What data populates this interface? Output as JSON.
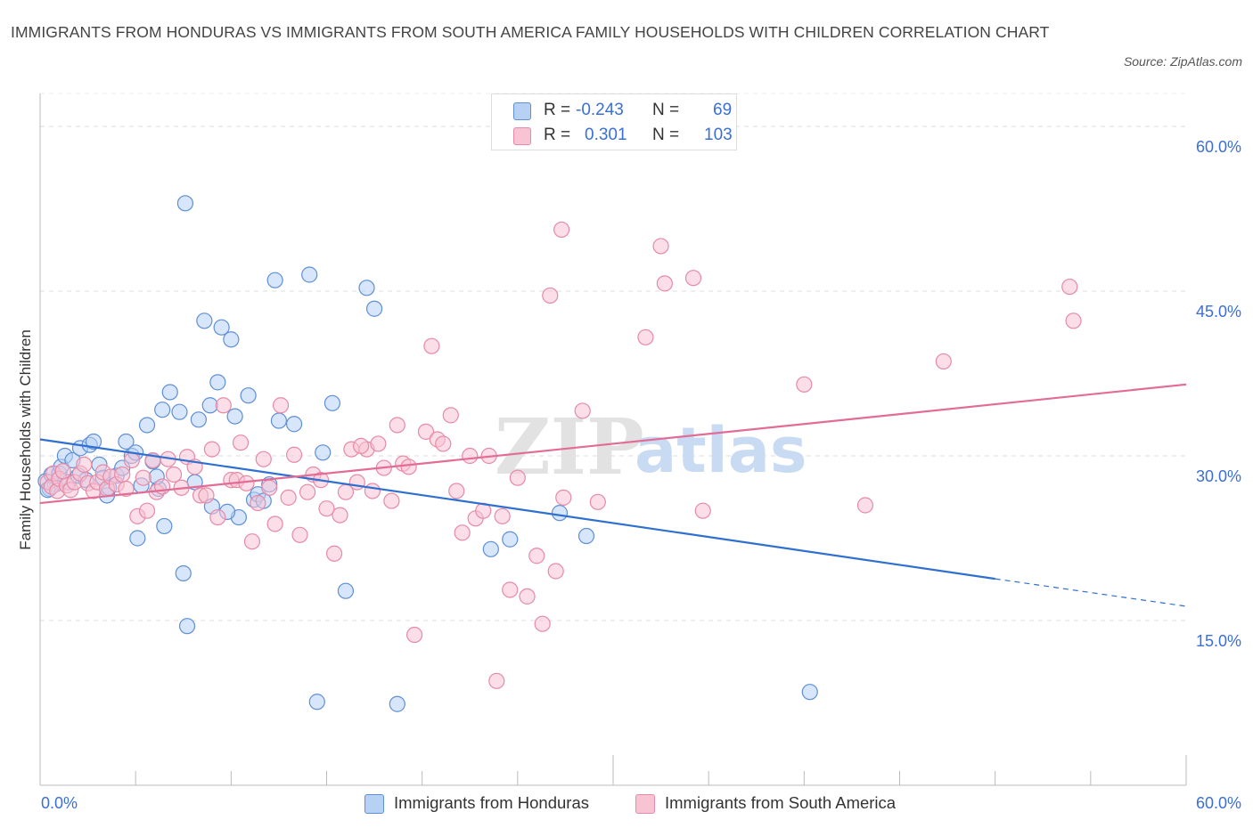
{
  "title": "IMMIGRANTS FROM HONDURAS VS IMMIGRANTS FROM SOUTH AMERICA FAMILY HOUSEHOLDS WITH CHILDREN CORRELATION CHART",
  "source": "Source: ZipAtlas.com",
  "watermark": {
    "zip": "ZIP",
    "atlas": "atlas"
  },
  "colors": {
    "blue_fill": "#b7d1f5",
    "blue_stroke": "#5f8fd6",
    "blue_line": "#2f6fd0",
    "pink_fill": "#f8c3d3",
    "pink_stroke": "#e68aa7",
    "pink_line": "#e26c96",
    "axis_text": "#3a6fd8",
    "grid": "#dddddd"
  },
  "legend": {
    "rows": [
      {
        "r_label": "R =",
        "r_value": "-0.243",
        "n_label": "N =",
        "n_value": "69"
      },
      {
        "r_label": "R =",
        "r_value": "0.301",
        "n_label": "N =",
        "n_value": "103"
      }
    ]
  },
  "chart_data": {
    "type": "scatter",
    "title": "IMMIGRANTS FROM HONDURAS VS IMMIGRANTS FROM SOUTH AMERICA FAMILY HOUSEHOLDS WITH CHILDREN CORRELATION CHART",
    "xlabel": "",
    "ylabel": "Family Households with Children",
    "xlim": [
      0,
      60
    ],
    "ylim": [
      0,
      63
    ],
    "x_tick_labels": [
      {
        "value": 0,
        "label": "0.0%"
      },
      {
        "value": 60,
        "label": "60.0%"
      }
    ],
    "y_tick_labels": [
      {
        "value": 60,
        "label": "60.0%"
      },
      {
        "value": 45,
        "label": "45.0%"
      },
      {
        "value": 30,
        "label": "30.0%"
      },
      {
        "value": 15,
        "label": "15.0%"
      }
    ],
    "y_gridlines": [
      15,
      30,
      45,
      60
    ],
    "legend_position": "bottom",
    "series": [
      {
        "name": "Immigrants from Honduras",
        "color": "blue",
        "r": -0.243,
        "n": 69,
        "trend": {
          "x0": 0,
          "y0": 31.5,
          "x1": 50,
          "y1": 18.8,
          "dash_to_x": 60,
          "dash_to_y": 16.3
        },
        "points": [
          [
            0.3,
            27.7
          ],
          [
            0.5,
            27.0
          ],
          [
            0.6,
            28.3
          ],
          [
            0.8,
            27.4
          ],
          [
            1.0,
            28.4
          ],
          [
            1.1,
            29.0
          ],
          [
            1.3,
            30.0
          ],
          [
            1.5,
            27.6
          ],
          [
            1.7,
            29.6
          ],
          [
            2.0,
            28.2
          ],
          [
            2.1,
            30.7
          ],
          [
            2.4,
            27.8
          ],
          [
            2.6,
            31.0
          ],
          [
            2.8,
            31.3
          ],
          [
            3.1,
            29.2
          ],
          [
            3.3,
            28.0
          ],
          [
            3.5,
            26.4
          ],
          [
            3.6,
            27.1
          ],
          [
            4.0,
            28.2
          ],
          [
            4.3,
            28.9
          ],
          [
            4.5,
            31.3
          ],
          [
            4.8,
            30.0
          ],
          [
            5.0,
            30.3
          ],
          [
            5.1,
            22.5
          ],
          [
            5.3,
            27.3
          ],
          [
            5.6,
            32.8
          ],
          [
            5.9,
            29.5
          ],
          [
            6.2,
            27.0
          ],
          [
            6.4,
            34.2
          ],
          [
            6.5,
            23.6
          ],
          [
            6.8,
            35.8
          ],
          [
            7.3,
            34.0
          ],
          [
            7.5,
            19.3
          ],
          [
            7.6,
            53.0
          ],
          [
            7.7,
            14.5
          ],
          [
            8.1,
            27.6
          ],
          [
            8.3,
            33.3
          ],
          [
            8.6,
            42.3
          ],
          [
            8.9,
            34.6
          ],
          [
            9.0,
            25.4
          ],
          [
            9.3,
            36.7
          ],
          [
            9.5,
            41.7
          ],
          [
            10.0,
            40.6
          ],
          [
            10.2,
            33.6
          ],
          [
            10.4,
            24.4
          ],
          [
            10.9,
            35.5
          ],
          [
            11.2,
            26.0
          ],
          [
            11.4,
            26.5
          ],
          [
            11.7,
            25.9
          ],
          [
            12.0,
            27.4
          ],
          [
            12.3,
            46.0
          ],
          [
            12.5,
            33.2
          ],
          [
            13.3,
            32.9
          ],
          [
            14.1,
            46.5
          ],
          [
            14.5,
            7.6
          ],
          [
            14.8,
            30.3
          ],
          [
            15.3,
            34.8
          ],
          [
            16.0,
            17.7
          ],
          [
            17.1,
            45.3
          ],
          [
            17.5,
            43.4
          ],
          [
            18.7,
            7.4
          ],
          [
            23.6,
            21.5
          ],
          [
            24.6,
            22.4
          ],
          [
            27.2,
            24.8
          ],
          [
            28.6,
            22.7
          ],
          [
            40.3,
            8.5
          ],
          [
            0.4,
            26.9
          ],
          [
            9.8,
            24.9
          ],
          [
            6.1,
            28.1
          ]
        ]
      },
      {
        "name": "Immigrants from South America",
        "color": "pink",
        "r": 0.301,
        "n": 103,
        "trend": {
          "x0": 0,
          "y0": 25.7,
          "x1": 60,
          "y1": 36.5
        },
        "points": [
          [
            0.4,
            27.6
          ],
          [
            0.6,
            27.2
          ],
          [
            0.7,
            28.4
          ],
          [
            0.9,
            26.8
          ],
          [
            1.0,
            27.9
          ],
          [
            1.2,
            28.6
          ],
          [
            1.4,
            27.3
          ],
          [
            1.6,
            26.9
          ],
          [
            1.8,
            27.6
          ],
          [
            2.1,
            28.4
          ],
          [
            2.3,
            29.2
          ],
          [
            2.5,
            27.5
          ],
          [
            2.8,
            26.8
          ],
          [
            3.0,
            27.6
          ],
          [
            3.3,
            28.5
          ],
          [
            3.5,
            27.0
          ],
          [
            3.7,
            28.1
          ],
          [
            4.0,
            27.4
          ],
          [
            4.3,
            28.3
          ],
          [
            4.5,
            27.0
          ],
          [
            4.8,
            29.6
          ],
          [
            5.1,
            24.5
          ],
          [
            5.4,
            28.0
          ],
          [
            5.6,
            25.0
          ],
          [
            5.9,
            29.6
          ],
          [
            6.1,
            26.7
          ],
          [
            6.4,
            27.2
          ],
          [
            6.7,
            29.7
          ],
          [
            7.0,
            28.3
          ],
          [
            7.4,
            27.1
          ],
          [
            7.7,
            29.9
          ],
          [
            8.1,
            29.0
          ],
          [
            8.4,
            26.4
          ],
          [
            8.7,
            26.4
          ],
          [
            9.0,
            30.6
          ],
          [
            9.3,
            24.4
          ],
          [
            9.6,
            34.6
          ],
          [
            10.0,
            27.8
          ],
          [
            10.3,
            27.8
          ],
          [
            10.5,
            31.2
          ],
          [
            10.8,
            27.5
          ],
          [
            11.1,
            22.2
          ],
          [
            11.4,
            25.7
          ],
          [
            11.7,
            29.7
          ],
          [
            12.0,
            27.1
          ],
          [
            12.3,
            23.8
          ],
          [
            12.6,
            34.6
          ],
          [
            13.0,
            26.2
          ],
          [
            13.3,
            30.1
          ],
          [
            13.6,
            22.8
          ],
          [
            14.0,
            26.7
          ],
          [
            14.3,
            28.3
          ],
          [
            14.7,
            27.8
          ],
          [
            15.0,
            25.2
          ],
          [
            15.4,
            21.1
          ],
          [
            15.7,
            24.6
          ],
          [
            16.0,
            26.7
          ],
          [
            16.3,
            30.6
          ],
          [
            16.6,
            27.6
          ],
          [
            17.1,
            30.6
          ],
          [
            17.4,
            26.8
          ],
          [
            17.7,
            31.1
          ],
          [
            18.0,
            28.9
          ],
          [
            18.4,
            25.9
          ],
          [
            18.7,
            32.8
          ],
          [
            19.0,
            29.3
          ],
          [
            19.3,
            29.0
          ],
          [
            19.6,
            13.7
          ],
          [
            20.2,
            32.2
          ],
          [
            20.5,
            40.0
          ],
          [
            20.8,
            31.5
          ],
          [
            21.1,
            31.1
          ],
          [
            21.5,
            33.7
          ],
          [
            21.8,
            26.8
          ],
          [
            22.1,
            23.0
          ],
          [
            22.5,
            30.0
          ],
          [
            22.8,
            24.3
          ],
          [
            23.2,
            25.0
          ],
          [
            23.5,
            30.0
          ],
          [
            23.9,
            9.5
          ],
          [
            24.2,
            24.5
          ],
          [
            24.6,
            17.8
          ],
          [
            25.0,
            28.0
          ],
          [
            25.5,
            17.2
          ],
          [
            26.0,
            20.9
          ],
          [
            26.3,
            14.7
          ],
          [
            26.7,
            44.6
          ],
          [
            27.0,
            19.5
          ],
          [
            27.4,
            26.2
          ],
          [
            28.4,
            34.1
          ],
          [
            29.2,
            25.8
          ],
          [
            31.7,
            40.8
          ],
          [
            32.5,
            49.1
          ],
          [
            32.7,
            45.7
          ],
          [
            34.2,
            46.2
          ],
          [
            34.7,
            25.0
          ],
          [
            40.0,
            36.5
          ],
          [
            43.2,
            25.5
          ],
          [
            47.3,
            38.6
          ],
          [
            53.9,
            45.4
          ],
          [
            54.1,
            42.3
          ],
          [
            27.3,
            50.6
          ],
          [
            16.8,
            30.9
          ]
        ]
      }
    ]
  }
}
